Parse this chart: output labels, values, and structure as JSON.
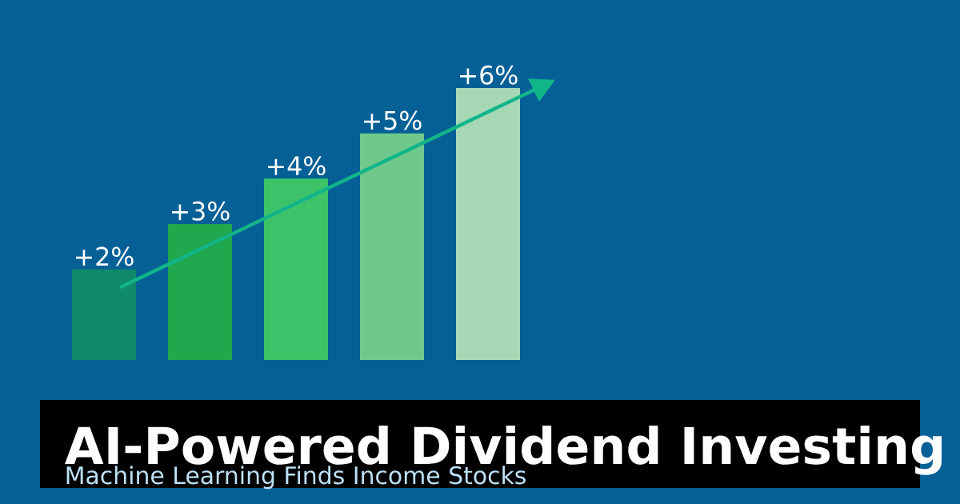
{
  "chart_data": {
    "type": "bar",
    "title": "AI-Powered Dividend Investing",
    "subtitle": "Machine Learning Finds Income Stocks",
    "categories": [
      null,
      null,
      null,
      null,
      null
    ],
    "values": [
      2,
      3,
      4,
      5,
      6
    ],
    "colors": [
      "#0f8a6a",
      "#1fa84e",
      "#3cc36a",
      "#6fc98c",
      "#a6d8b6"
    ],
    "value_labels": [
      "+2%",
      "+3%",
      "+4%",
      "+5%",
      "+6%"
    ]
  }
}
